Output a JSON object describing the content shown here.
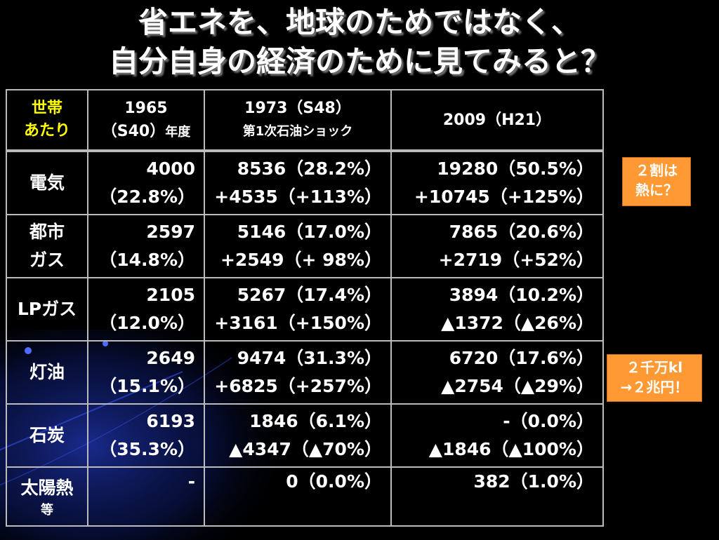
{
  "slide": {
    "title_line1": "省エネを、地球のためではなく、",
    "title_line2": "自分自身の経済のために見てみると？"
  },
  "table": {
    "header": {
      "label_line1": "世帯",
      "label_line2": "あたり",
      "col1_line1": "1965",
      "col1_line2": "（S40）",
      "col1_suffix": "年度",
      "col2_line1": "1973（S48）",
      "col2_line2": "第1次石油ショック",
      "col3": "2009（H21）"
    },
    "rows": [
      {
        "label": "電気",
        "c1a": "4000",
        "c1b": "（22.8%）",
        "c2a": "8536（28.2%）",
        "c2b": "+4535（+113%）",
        "c3a": "19280（50.5%）",
        "c3b": "+10745（+125%）"
      },
      {
        "label": "都市\nガス",
        "label_a": "都市",
        "label_b": "ガス",
        "c1a": "2597",
        "c1b": "（14.8%）",
        "c2a": "5146（17.0%）",
        "c2b": "+2549（+ 98%）",
        "c3a": "7865（20.6%）",
        "c3b": "+2719（+52%）"
      },
      {
        "label": "LPガス",
        "c1a": "2105",
        "c1b": "（12.0%）",
        "c2a": "5267（17.4%）",
        "c2b": "+3161（+150%）",
        "c3a": "3894（10.2%）",
        "c3b": "▲1372（▲26%）"
      },
      {
        "label": "灯油",
        "c1a": "2649",
        "c1b": "（15.1%）",
        "c2a": "9474（31.3%）",
        "c2b": "+6825（+257%）",
        "c3a": "6720（17.6%）",
        "c3b": "▲2754（▲29%）"
      },
      {
        "label": "石炭",
        "c1a": "6193",
        "c1b": "（35.3%）",
        "c2a": "1846（6.1%）",
        "c2b": "▲4347（▲70%）",
        "c3a": "-（0.0%）",
        "c3b": "▲1846（▲100%）"
      },
      {
        "label": "太陽熱",
        "label_sub": "等",
        "c1a": "-",
        "c2a": "0（0.0%）",
        "c3a": "382（1.0%）"
      }
    ]
  },
  "callouts": {
    "heat_line1": "２割は",
    "heat_line2": "熱に？",
    "kerosene_line1": "２千万kl",
    "kerosene_line2": "→２兆円！"
  },
  "colors": {
    "background": "#000000",
    "header_label": "#ffff00",
    "callout_bg": "#ff9933",
    "table_border": "#bbbbbb",
    "accent_blue": "#1a2f8c"
  }
}
